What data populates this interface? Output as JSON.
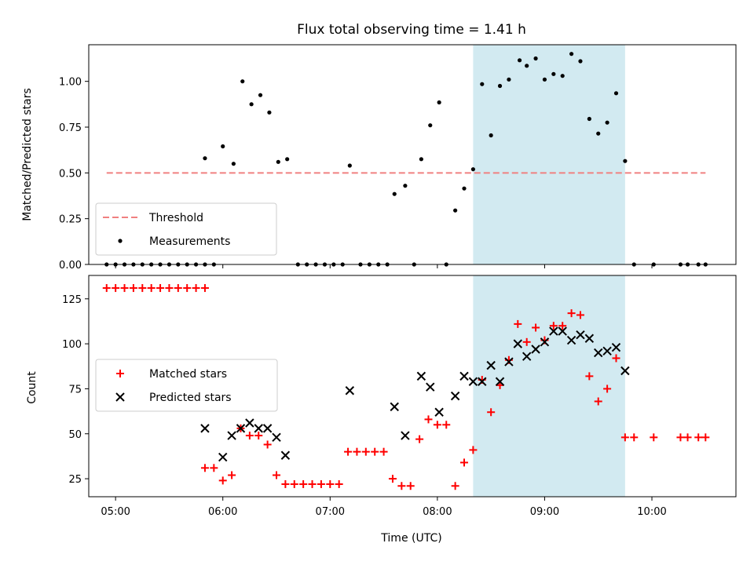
{
  "chart_data": [
    {
      "type": "scatter",
      "title": "Flux total observing time = 1.41 h",
      "xlabel": "",
      "ylabel": "Matched/Predicted stars",
      "ylim": [
        0,
        1.2
      ],
      "xlim": [
        "04:45",
        "10:47"
      ],
      "yticks": [
        "0.00",
        "0.25",
        "0.50",
        "0.75",
        "1.00"
      ],
      "shaded_region": [
        "08:20",
        "09:45"
      ],
      "shaded_color": "#add8e6",
      "legend_placement": "lower-left",
      "threshold": {
        "name": "Threshold",
        "y": 0.5,
        "x": [
          "04:55",
          "10:30"
        ],
        "color": "#f08080",
        "style": "dashed"
      },
      "series": [
        {
          "name": "Measurements",
          "marker": "dot",
          "color": "#000000",
          "points": [
            [
              "04:55",
              0.0
            ],
            [
              "05:00",
              0.0
            ],
            [
              "05:05",
              0.0
            ],
            [
              "05:10",
              0.0
            ],
            [
              "05:15",
              0.0
            ],
            [
              "05:20",
              0.0
            ],
            [
              "05:25",
              0.0
            ],
            [
              "05:30",
              0.0
            ],
            [
              "05:35",
              0.0
            ],
            [
              "05:40",
              0.0
            ],
            [
              "05:45",
              0.0
            ],
            [
              "05:50",
              0.0
            ],
            [
              "05:55",
              0.0
            ],
            [
              "05:50",
              0.58
            ],
            [
              "06:00",
              0.645
            ],
            [
              "06:06",
              0.55
            ],
            [
              "06:11",
              1.0
            ],
            [
              "06:16",
              0.875
            ],
            [
              "06:21",
              0.925
            ],
            [
              "06:26",
              0.83
            ],
            [
              "06:31",
              0.56
            ],
            [
              "06:36",
              0.575
            ],
            [
              "06:42",
              0.0
            ],
            [
              "06:47",
              0.0
            ],
            [
              "06:52",
              0.0
            ],
            [
              "06:57",
              0.0
            ],
            [
              "07:02",
              0.0
            ],
            [
              "07:07",
              0.0
            ],
            [
              "07:11",
              0.54
            ],
            [
              "07:17",
              0.0
            ],
            [
              "07:22",
              0.0
            ],
            [
              "07:27",
              0.0
            ],
            [
              "07:32",
              0.0
            ],
            [
              "07:36",
              0.385
            ],
            [
              "07:42",
              0.43
            ],
            [
              "07:47",
              0.0
            ],
            [
              "07:51",
              0.575
            ],
            [
              "07:56",
              0.76
            ],
            [
              "08:01",
              0.885
            ],
            [
              "08:05",
              0.0
            ],
            [
              "08:10",
              0.295
            ],
            [
              "08:15",
              0.415
            ],
            [
              "08:20",
              0.52
            ],
            [
              "08:25",
              0.985
            ],
            [
              "08:30",
              0.705
            ],
            [
              "08:35",
              0.975
            ],
            [
              "08:40",
              1.01
            ],
            [
              "08:46",
              1.115
            ],
            [
              "08:50",
              1.085
            ],
            [
              "08:55",
              1.125
            ],
            [
              "09:00",
              1.01
            ],
            [
              "09:05",
              1.04
            ],
            [
              "09:10",
              1.03
            ],
            [
              "09:15",
              1.15
            ],
            [
              "09:20",
              1.11
            ],
            [
              "09:25",
              0.795
            ],
            [
              "09:30",
              0.715
            ],
            [
              "09:35",
              0.775
            ],
            [
              "09:40",
              0.935
            ],
            [
              "09:45",
              0.565
            ],
            [
              "09:50",
              0.0
            ],
            [
              "10:01",
              0.0
            ],
            [
              "10:16",
              0.0
            ],
            [
              "10:20",
              0.0
            ],
            [
              "10:26",
              0.0
            ],
            [
              "10:30",
              0.0
            ]
          ]
        }
      ]
    },
    {
      "type": "scatter",
      "title": "",
      "xlabel": "Time (UTC)",
      "ylabel": "Count",
      "ylim": [
        15,
        138
      ],
      "xlim": [
        "04:45",
        "10:47"
      ],
      "yticks": [
        "25",
        "50",
        "75",
        "100",
        "125"
      ],
      "xticks": [
        "05:00",
        "06:00",
        "07:00",
        "08:00",
        "09:00",
        "10:00"
      ],
      "shaded_region": [
        "08:20",
        "09:45"
      ],
      "shaded_color": "#add8e6",
      "legend_placement": "center-left",
      "series": [
        {
          "name": "Matched stars",
          "marker": "plus",
          "color": "#ff0000",
          "points": [
            [
              "04:55",
              131
            ],
            [
              "05:00",
              131
            ],
            [
              "05:05",
              131
            ],
            [
              "05:10",
              131
            ],
            [
              "05:15",
              131
            ],
            [
              "05:20",
              131
            ],
            [
              "05:25",
              131
            ],
            [
              "05:30",
              131
            ],
            [
              "05:35",
              131
            ],
            [
              "05:40",
              131
            ],
            [
              "05:45",
              131
            ],
            [
              "05:50",
              131
            ],
            [
              "05:50",
              31
            ],
            [
              "05:55",
              31
            ],
            [
              "06:00",
              24
            ],
            [
              "06:05",
              27
            ],
            [
              "06:10",
              53
            ],
            [
              "06:15",
              49
            ],
            [
              "06:20",
              49
            ],
            [
              "06:25",
              44
            ],
            [
              "06:30",
              27
            ],
            [
              "06:35",
              22
            ],
            [
              "06:40",
              22
            ],
            [
              "06:45",
              22
            ],
            [
              "06:50",
              22
            ],
            [
              "06:55",
              22
            ],
            [
              "07:00",
              22
            ],
            [
              "07:05",
              22
            ],
            [
              "07:10",
              40
            ],
            [
              "07:15",
              40
            ],
            [
              "07:20",
              40
            ],
            [
              "07:25",
              40
            ],
            [
              "07:30",
              40
            ],
            [
              "07:35",
              25
            ],
            [
              "07:40",
              21
            ],
            [
              "07:45",
              21
            ],
            [
              "07:50",
              47
            ],
            [
              "07:55",
              58
            ],
            [
              "08:00",
              55
            ],
            [
              "08:05",
              55
            ],
            [
              "08:10",
              21
            ],
            [
              "08:15",
              34
            ],
            [
              "08:20",
              41
            ],
            [
              "08:25",
              80
            ],
            [
              "08:30",
              62
            ],
            [
              "08:35",
              77
            ],
            [
              "08:40",
              91
            ],
            [
              "08:45",
              111
            ],
            [
              "08:50",
              101
            ],
            [
              "08:55",
              109
            ],
            [
              "09:00",
              102
            ],
            [
              "09:05",
              110
            ],
            [
              "09:10",
              110
            ],
            [
              "09:15",
              117
            ],
            [
              "09:20",
              116
            ],
            [
              "09:25",
              82
            ],
            [
              "09:30",
              68
            ],
            [
              "09:35",
              75
            ],
            [
              "09:40",
              92
            ],
            [
              "09:45",
              48
            ],
            [
              "09:50",
              48
            ],
            [
              "10:01",
              48
            ],
            [
              "10:16",
              48
            ],
            [
              "10:20",
              48
            ],
            [
              "10:26",
              48
            ],
            [
              "10:30",
              48
            ]
          ]
        },
        {
          "name": "Predicted stars",
          "marker": "x",
          "color": "#000000",
          "points": [
            [
              "05:50",
              53
            ],
            [
              "06:00",
              37
            ],
            [
              "06:05",
              49
            ],
            [
              "06:10",
              53
            ],
            [
              "06:15",
              56
            ],
            [
              "06:20",
              53
            ],
            [
              "06:25",
              53
            ],
            [
              "06:30",
              48
            ],
            [
              "06:35",
              38
            ],
            [
              "07:11",
              74
            ],
            [
              "07:36",
              65
            ],
            [
              "07:42",
              49
            ],
            [
              "07:51",
              82
            ],
            [
              "07:56",
              76
            ],
            [
              "08:01",
              62
            ],
            [
              "08:10",
              71
            ],
            [
              "08:15",
              82
            ],
            [
              "08:20",
              79
            ],
            [
              "08:25",
              79
            ],
            [
              "08:30",
              88
            ],
            [
              "08:35",
              79
            ],
            [
              "08:40",
              90
            ],
            [
              "08:45",
              100
            ],
            [
              "08:50",
              93
            ],
            [
              "08:55",
              97
            ],
            [
              "09:00",
              101
            ],
            [
              "09:05",
              107
            ],
            [
              "09:10",
              107
            ],
            [
              "09:15",
              102
            ],
            [
              "09:20",
              105
            ],
            [
              "09:25",
              103
            ],
            [
              "09:30",
              95
            ],
            [
              "09:35",
              96
            ],
            [
              "09:40",
              98
            ],
            [
              "09:45",
              85
            ]
          ]
        }
      ]
    }
  ]
}
